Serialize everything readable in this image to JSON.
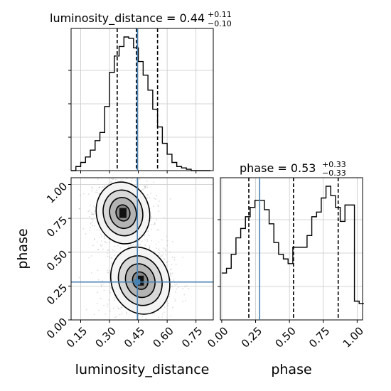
{
  "colors": {
    "truth": "#4682b4",
    "line": "#000000",
    "grid": "#c8c8c8",
    "samples": "#9e9e9e"
  },
  "chart_data": [
    {
      "type": "histogram",
      "panel": "marginal-luminosity-distance",
      "title": {
        "main": "luminosity_distance = 0.44",
        "sup": "+0.11",
        "sub": "−0.10"
      },
      "xlim": [
        0.1,
        0.84
      ],
      "grid": true,
      "median": 0.44,
      "quantiles": [
        0.34,
        0.44,
        0.55
      ],
      "truth": 0.445,
      "bin_edges": [
        0.1,
        0.125,
        0.15,
        0.175,
        0.2,
        0.225,
        0.25,
        0.275,
        0.3,
        0.325,
        0.35,
        0.375,
        0.4,
        0.425,
        0.45,
        0.475,
        0.5,
        0.525,
        0.55,
        0.575,
        0.6,
        0.625,
        0.65,
        0.675,
        0.7,
        0.725,
        0.75,
        0.775,
        0.8,
        0.825
      ],
      "counts": [
        0,
        3,
        6,
        10,
        15,
        22,
        28,
        47,
        72,
        84,
        91,
        98,
        97,
        90,
        80,
        70,
        59,
        45,
        32,
        20,
        12,
        6,
        3,
        2,
        1,
        0,
        0,
        0,
        0
      ]
    },
    {
      "type": "histogram",
      "panel": "marginal-phase",
      "title": {
        "main": "phase = 0.53",
        "sup": "+0.33",
        "sub": "−0.33"
      },
      "xlim": [
        -0.01,
        1.04
      ],
      "xticks": [
        "0.00",
        "0.25",
        "0.50",
        "0.75",
        "1.00"
      ],
      "xlabel": "phase",
      "grid": true,
      "median": 0.53,
      "quantiles": [
        0.2,
        0.53,
        0.86
      ],
      "truth": 0.28,
      "bin_edges": [
        0.0,
        0.035,
        0.07,
        0.105,
        0.14,
        0.175,
        0.21,
        0.245,
        0.28,
        0.315,
        0.35,
        0.385,
        0.42,
        0.455,
        0.49,
        0.525,
        0.56,
        0.595,
        0.63,
        0.665,
        0.7,
        0.735,
        0.77,
        0.805,
        0.84,
        0.875,
        0.91,
        0.945,
        0.98,
        1.015,
        1.05
      ],
      "counts": [
        20,
        22,
        28,
        35,
        39,
        44,
        48,
        51,
        51,
        47,
        41,
        33,
        28,
        26,
        24,
        31,
        31,
        31,
        36,
        44,
        46,
        52,
        57,
        53,
        48,
        42,
        49,
        49,
        8,
        7
      ]
    },
    {
      "type": "scatter-contour",
      "panel": "joint-luminosity-distance-phase",
      "xlim": [
        0.1,
        0.84
      ],
      "ylim": [
        0.0,
        1.05
      ],
      "xticks": [
        "0.15",
        "0.30",
        "0.45",
        "0.60",
        "0.75"
      ],
      "yticks": [
        "0.00",
        "0.25",
        "0.50",
        "0.75",
        "1.00"
      ],
      "xlabel": "luminosity_distance",
      "ylabel": "phase",
      "grid": true,
      "truth": {
        "x": 0.445,
        "y": 0.28
      },
      "modes": [
        {
          "center": [
            0.37,
            0.79
          ],
          "sigma": [
            0.06,
            0.1
          ]
        },
        {
          "center": [
            0.46,
            0.29
          ],
          "sigma": [
            0.065,
            0.11
          ]
        }
      ]
    }
  ]
}
